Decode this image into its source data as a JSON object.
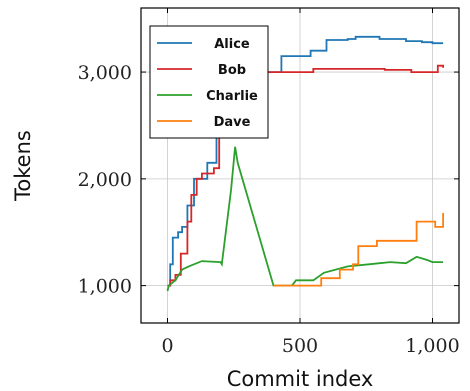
{
  "chart_data": {
    "type": "line",
    "xlabel": "Commit index",
    "ylabel": "Tokens",
    "xlim": [
      -100,
      1100
    ],
    "ylim": [
      650,
      3600
    ],
    "x_ticks": [
      0,
      500,
      1000
    ],
    "x_tick_labels": [
      "0",
      "500",
      "1,000"
    ],
    "y_ticks": [
      1000,
      2000,
      3000
    ],
    "y_tick_labels": [
      "1,000",
      "2,000",
      "3,000"
    ],
    "grid": true,
    "legend_position": "top-left",
    "series": [
      {
        "name": "Alice",
        "color": "#1f77b4",
        "step": true,
        "points": [
          [
            0,
            1000
          ],
          [
            10,
            1200
          ],
          [
            20,
            1450
          ],
          [
            40,
            1500
          ],
          [
            55,
            1550
          ],
          [
            75,
            1750
          ],
          [
            100,
            2000
          ],
          [
            150,
            2150
          ],
          [
            185,
            2500
          ],
          [
            230,
            2950
          ],
          [
            300,
            3000
          ],
          [
            430,
            3150
          ],
          [
            540,
            3200
          ],
          [
            600,
            3300
          ],
          [
            680,
            3310
          ],
          [
            710,
            3330
          ],
          [
            800,
            3310
          ],
          [
            900,
            3290
          ],
          [
            960,
            3280
          ],
          [
            1000,
            3270
          ],
          [
            1040,
            3270
          ]
        ]
      },
      {
        "name": "Bob",
        "color": "#d62728",
        "step": true,
        "points": [
          [
            0,
            1000
          ],
          [
            10,
            1050
          ],
          [
            30,
            1100
          ],
          [
            50,
            1300
          ],
          [
            75,
            1600
          ],
          [
            90,
            1850
          ],
          [
            110,
            2000
          ],
          [
            130,
            2050
          ],
          [
            175,
            2100
          ],
          [
            195,
            2400
          ],
          [
            230,
            2970
          ],
          [
            300,
            3000
          ],
          [
            550,
            3030
          ],
          [
            700,
            3030
          ],
          [
            820,
            3020
          ],
          [
            920,
            3000
          ],
          [
            1000,
            3000
          ],
          [
            1020,
            3060
          ],
          [
            1040,
            3040
          ]
        ]
      },
      {
        "name": "Charlie",
        "color": "#2ca02c",
        "step": false,
        "points": [
          [
            0,
            950
          ],
          [
            5,
            1000
          ],
          [
            30,
            1050
          ],
          [
            55,
            1150
          ],
          [
            80,
            1180
          ],
          [
            130,
            1230
          ],
          [
            200,
            1220
          ],
          [
            205,
            1200
          ],
          [
            240,
            1900
          ],
          [
            255,
            2300
          ],
          [
            265,
            2150
          ],
          [
            400,
            1000
          ],
          [
            470,
            1000
          ],
          [
            485,
            1050
          ],
          [
            550,
            1050
          ],
          [
            590,
            1120
          ],
          [
            680,
            1180
          ],
          [
            760,
            1200
          ],
          [
            840,
            1220
          ],
          [
            900,
            1210
          ],
          [
            940,
            1270
          ],
          [
            980,
            1240
          ],
          [
            1000,
            1220
          ],
          [
            1040,
            1220
          ]
        ]
      },
      {
        "name": "Dave",
        "color": "#ff7f0e",
        "step": true,
        "points": [
          [
            400,
            1000
          ],
          [
            580,
            1070
          ],
          [
            650,
            1150
          ],
          [
            700,
            1200
          ],
          [
            720,
            1370
          ],
          [
            790,
            1420
          ],
          [
            940,
            1600
          ],
          [
            1010,
            1550
          ],
          [
            1040,
            1680
          ]
        ]
      }
    ]
  }
}
